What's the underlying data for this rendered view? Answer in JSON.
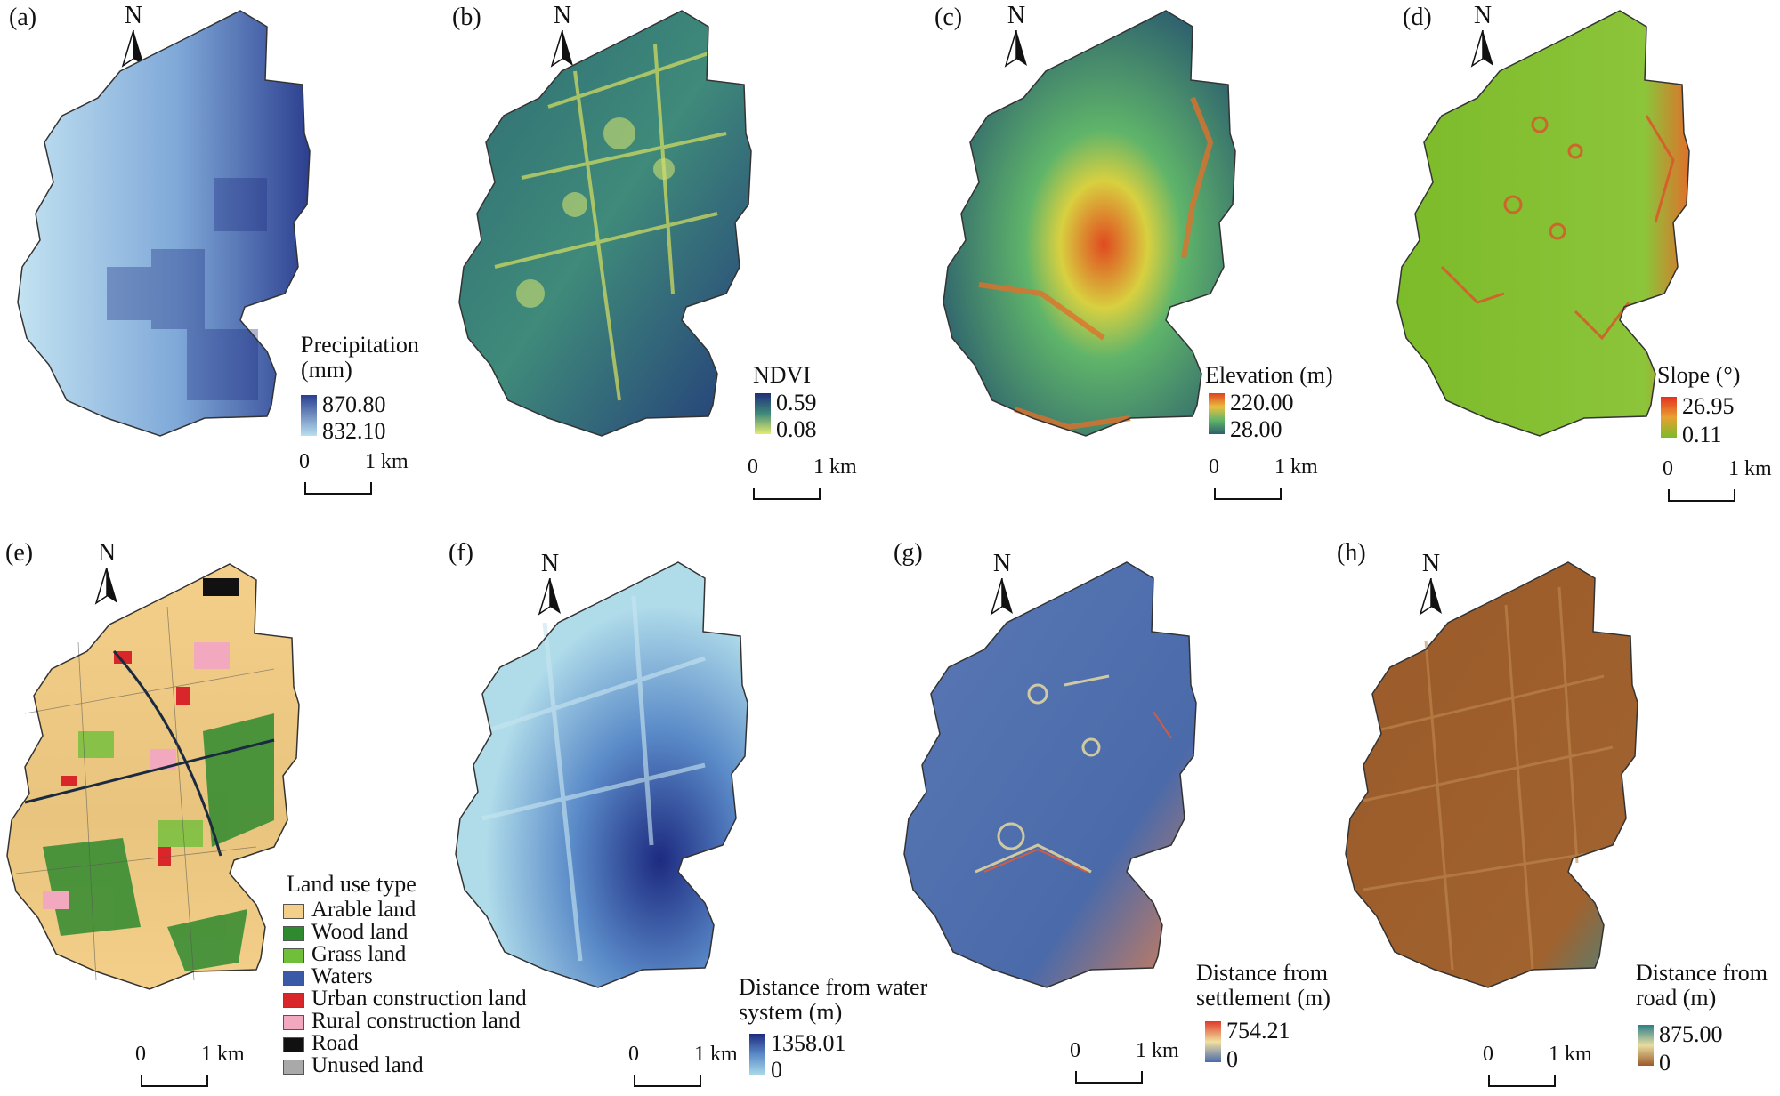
{
  "panels": [
    {
      "id": "a",
      "label": "(a)",
      "north": "N",
      "legend_title_lines": [
        "Precipitation",
        "(mm)"
      ],
      "max": "870.80",
      "min": "832.10",
      "colors": [
        "#2a3f8f",
        "#b9dff0"
      ],
      "scale": [
        "0",
        "1 km"
      ]
    },
    {
      "id": "b",
      "label": "(b)",
      "north": "N",
      "legend_title_lines": [
        "NDVI"
      ],
      "max": "0.59",
      "min": "0.08",
      "colors": [
        "#1f2f7a",
        "#e6ec70"
      ],
      "scale": [
        "0",
        "1 km"
      ]
    },
    {
      "id": "c",
      "label": "(c)",
      "north": "N",
      "legend_title_lines": [
        "Elevation (m)"
      ],
      "max": "220.00",
      "min": "28.00",
      "colors": [
        "#e04020",
        "#2d5f6e"
      ],
      "scale": [
        "0",
        "1 km"
      ]
    },
    {
      "id": "d",
      "label": "(d)",
      "north": "N",
      "legend_title_lines": [
        "Slope (°)"
      ],
      "max": "26.95",
      "min": "0.11",
      "colors": [
        "#e53020",
        "#7cbb2a"
      ],
      "scale": [
        "0",
        "1 km"
      ]
    },
    {
      "id": "e",
      "label": "(e)",
      "north": "N",
      "legend_title": "Land use type",
      "scale": [
        "0",
        "1 km"
      ],
      "classes": [
        {
          "name": "Arable land",
          "color": "#f3cf8a"
        },
        {
          "name": "Wood land",
          "color": "#2f8a2f"
        },
        {
          "name": "Grass land",
          "color": "#6fbf3a"
        },
        {
          "name": "Waters",
          "color": "#3a5aa8"
        },
        {
          "name": "Urban construction land",
          "color": "#d8262a"
        },
        {
          "name": "Rural construction land",
          "color": "#f2a9c0"
        },
        {
          "name": "Road",
          "color": "#111111"
        },
        {
          "name": "Unused land",
          "color": "#a9a9a9"
        }
      ]
    },
    {
      "id": "f",
      "label": "(f)",
      "north": "N",
      "legend_title_lines": [
        "Distance from water",
        "system (m)"
      ],
      "max": "1358.01",
      "min": "0",
      "colors": [
        "#1d2a80",
        "#a9d8e8"
      ],
      "scale": [
        "0",
        "1 km"
      ]
    },
    {
      "id": "g",
      "label": "(g)",
      "north": "N",
      "legend_title_lines": [
        "Distance from",
        "settlement (m)"
      ],
      "max": "754.21",
      "min": "0",
      "colors": [
        "#e03b2a",
        "#4a6aaa"
      ],
      "scale": [
        "0",
        "1 km"
      ]
    },
    {
      "id": "h",
      "label": "(h)",
      "north": "N",
      "legend_title_lines": [
        "Distance from",
        "road (m)"
      ],
      "max": "875.00",
      "min": "0",
      "colors": [
        "#2b7f8a",
        "#9b5a2a"
      ],
      "scale": [
        "0",
        "1 km"
      ]
    }
  ]
}
